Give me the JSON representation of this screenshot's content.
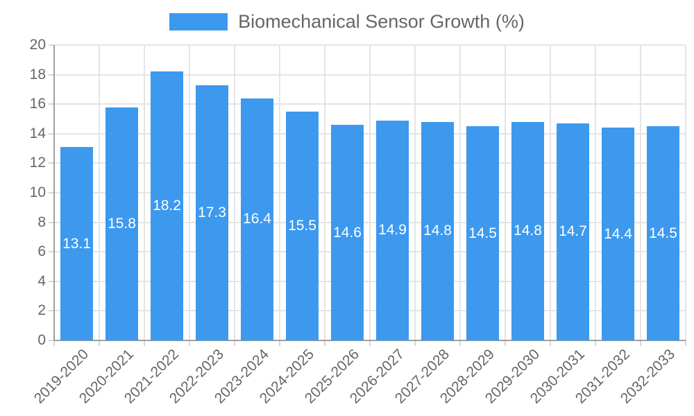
{
  "chart_data": {
    "type": "bar",
    "title": "Biomechanical Sensor Growth (%)",
    "categories": [
      "2019-2020",
      "2020-2021",
      "2021-2022",
      "2022-2023",
      "2023-2024",
      "2024-2025",
      "2025-2026",
      "2026-2027",
      "2027-2028",
      "2028-2029",
      "2029-2030",
      "2030-2031",
      "2031-2032",
      "2032-2033"
    ],
    "values": [
      13.1,
      15.8,
      18.2,
      17.3,
      16.4,
      15.5,
      14.6,
      14.9,
      14.8,
      14.5,
      14.8,
      14.7,
      14.4,
      14.5
    ],
    "value_labels": [
      "13.1",
      "15.8",
      "18.2",
      "17.3",
      "16.4",
      "15.5",
      "14.6",
      "14.9",
      "14.8",
      "14.5",
      "14.8",
      "14.7",
      "14.4",
      "14.5"
    ],
    "xlabel": "",
    "ylabel": "",
    "ylim": [
      0,
      20
    ],
    "yticks": [
      0,
      2,
      4,
      6,
      8,
      10,
      12,
      14,
      16,
      18,
      20
    ],
    "grid": true,
    "legend_position": "top-center",
    "bar_color": "#3c99ee",
    "data_label_color": "#ffffff",
    "axis_text_color": "#666666",
    "gridline_color": "#e4e4e4",
    "axis_line_color": "#9e9e9e",
    "tick_color": "#d6d6d6"
  },
  "legend": {
    "label": "Biomechanical Sensor Growth (%)"
  }
}
